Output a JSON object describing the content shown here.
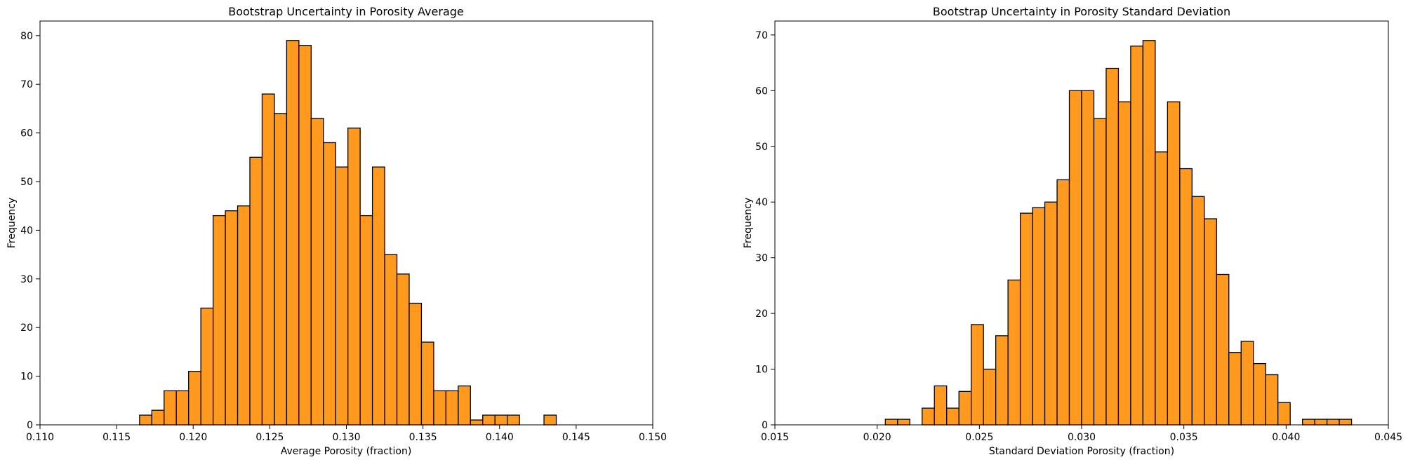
{
  "chart_data": [
    {
      "type": "bar",
      "title": "Bootstrap Uncertainty in Porosity Average",
      "xlabel": "Average Porosity (fraction)",
      "ylabel": "Frequency",
      "xlim": [
        0.11,
        0.15
      ],
      "ylim": [
        0,
        83
      ],
      "xticks": [
        "0.110",
        "0.115",
        "0.120",
        "0.125",
        "0.130",
        "0.135",
        "0.140",
        "0.145",
        "0.150"
      ],
      "yticks": [
        "0",
        "10",
        "20",
        "30",
        "40",
        "50",
        "60",
        "70",
        "80"
      ],
      "bin_start": 0.1165,
      "bin_width": 0.0008,
      "values": [
        2,
        3,
        7,
        7,
        11,
        24,
        43,
        44,
        45,
        55,
        68,
        64,
        79,
        78,
        63,
        58,
        53,
        61,
        43,
        53,
        35,
        31,
        25,
        17,
        7,
        7,
        8,
        1,
        2,
        2,
        2,
        0,
        0,
        2
      ],
      "bar_color": "#ff9a1f",
      "edge_color": "#000000",
      "grid": false
    },
    {
      "type": "bar",
      "title": "Bootstrap Uncertainty in Porosity Standard Deviation",
      "xlabel": "Standard Deviation Porosity (fraction)",
      "ylabel": "Frequency",
      "xlim": [
        0.015,
        0.045
      ],
      "ylim": [
        0,
        72.5
      ],
      "xticks": [
        "0.015",
        "0.020",
        "0.025",
        "0.030",
        "0.035",
        "0.040",
        "0.045"
      ],
      "yticks": [
        "0",
        "10",
        "20",
        "30",
        "40",
        "50",
        "60",
        "70"
      ],
      "bin_start": 0.0204,
      "bin_width": 0.0006,
      "values": [
        1,
        1,
        0,
        3,
        7,
        3,
        6,
        18,
        10,
        16,
        26,
        38,
        39,
        40,
        44,
        60,
        60,
        55,
        64,
        58,
        68,
        69,
        49,
        58,
        46,
        41,
        37,
        27,
        13,
        15,
        11,
        9,
        4,
        0,
        1,
        1,
        1,
        1
      ],
      "bar_color": "#ff9a1f",
      "edge_color": "#000000",
      "grid": false
    }
  ]
}
